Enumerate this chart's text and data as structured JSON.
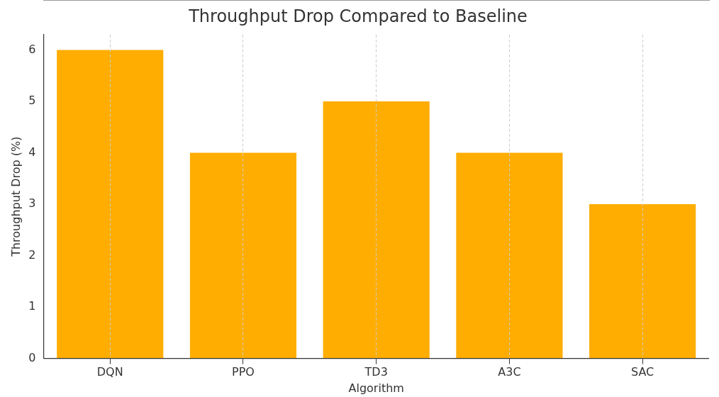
{
  "chart_data": {
    "type": "bar",
    "title": "Throughput Drop Compared to Baseline",
    "xlabel": "Algorithm",
    "ylabel": "Throughput Drop (%)",
    "categories": [
      "DQN",
      "PPO",
      "TD3",
      "A3C",
      "SAC"
    ],
    "values": [
      6,
      4,
      5,
      4,
      3
    ],
    "color": "#ffad00",
    "ylim": [
      0,
      6.3
    ],
    "yticks": [
      0,
      1,
      2,
      3,
      4,
      5,
      6
    ],
    "grid": "x",
    "legend": false
  }
}
